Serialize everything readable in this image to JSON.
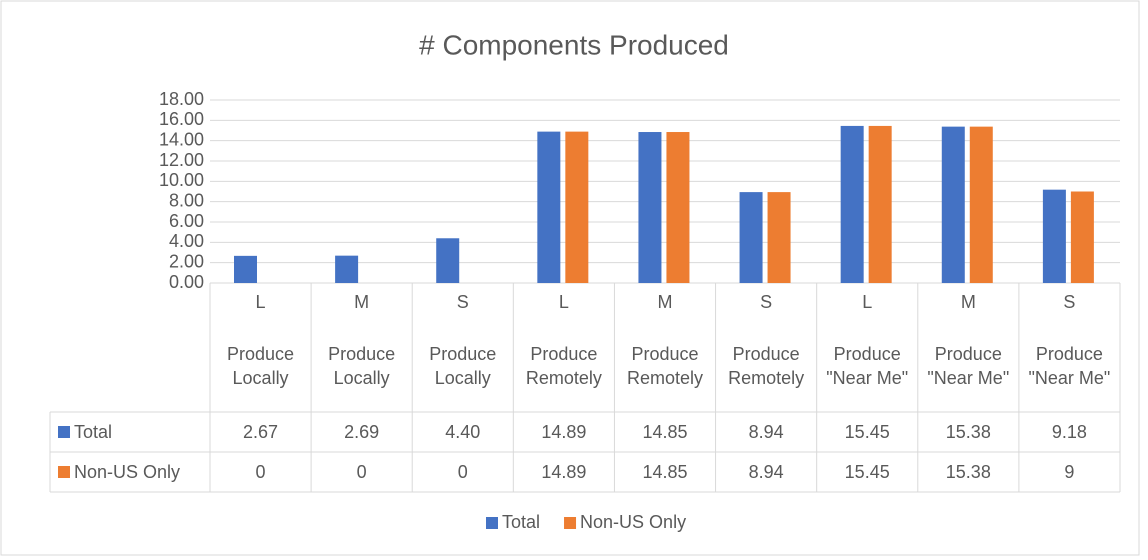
{
  "chart_data": {
    "type": "bar",
    "title": "# Components Produced",
    "categories": [
      "L",
      "M",
      "S",
      "L",
      "M",
      "S",
      "L",
      "M",
      "S"
    ],
    "groups": [
      "Produce Locally",
      "Produce Locally",
      "Produce Locally",
      "Produce Remotely",
      "Produce Remotely",
      "Produce Remotely",
      "Produce \"Near Me\"",
      "Produce \"Near Me\"",
      "Produce \"Near Me\""
    ],
    "series": [
      {
        "name": "Total",
        "color": "#4472c4",
        "values": [
          2.67,
          2.69,
          4.4,
          14.89,
          14.85,
          8.94,
          15.45,
          15.38,
          9.18
        ],
        "value_labels": [
          "2.67",
          "2.69",
          "4.40",
          "14.89",
          "14.85",
          "8.94",
          "15.45",
          "15.38",
          "9.18"
        ]
      },
      {
        "name": "Non-US Only",
        "color": "#ed7d31",
        "values": [
          0,
          0,
          0,
          14.89,
          14.85,
          8.94,
          15.45,
          15.38,
          9
        ]
      }
    ],
    "ylim": [
      0,
      18
    ],
    "yticks": [
      {
        "value": 0,
        "label": "0.00"
      },
      {
        "value": 2,
        "label": "2.00"
      },
      {
        "value": 4,
        "label": "4.00"
      },
      {
        "value": 6,
        "label": "6.00"
      },
      {
        "value": 8,
        "label": "8.00"
      },
      {
        "value": 10,
        "label": "10.00"
      },
      {
        "value": 12,
        "label": "12.00"
      },
      {
        "value": 14,
        "label": "14.00"
      },
      {
        "value": 16,
        "label": "16.00"
      },
      {
        "value": 18,
        "label": "18.00"
      }
    ],
    "grid": true,
    "legend": "bottom"
  }
}
